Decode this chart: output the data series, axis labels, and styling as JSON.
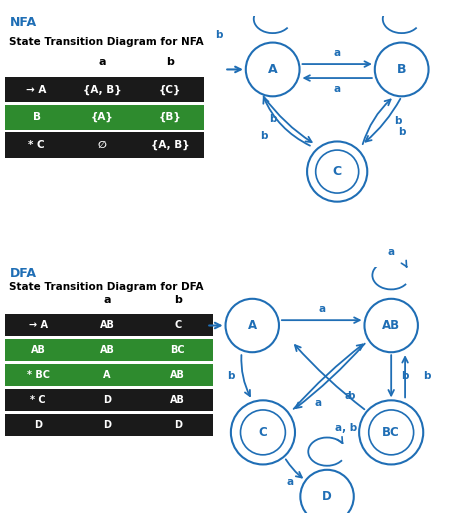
{
  "title_nfa": "NFA",
  "title_dfa": "DFA",
  "subtitle_nfa": "State Transition Diagram for NFA",
  "subtitle_dfa": "State Transition Diagram for DFA",
  "blue_color": "#1F6EB5",
  "green_color": "#2E8B2E",
  "dark_color": "#1a1a1a",
  "white_color": "#ffffff",
  "nfa_table": {
    "headers": [
      "",
      "a",
      "b"
    ],
    "rows": [
      [
        "→ A",
        "{A, B}",
        "{C}"
      ],
      [
        "B",
        "{A}",
        "{B}"
      ],
      [
        "* C",
        "∅",
        "{A, B}"
      ]
    ],
    "row_colors": [
      "#1a1a1a",
      "#2E8B2E",
      "#1a1a1a"
    ]
  },
  "dfa_table": {
    "headers": [
      "",
      "a",
      "b"
    ],
    "rows": [
      [
        "→ A",
        "AB",
        "C"
      ],
      [
        "AB",
        "AB",
        "BC"
      ],
      [
        "* BC",
        "A",
        "AB"
      ],
      [
        "* C",
        "D",
        "AB"
      ],
      [
        "D",
        "D",
        "D"
      ]
    ],
    "row_colors": [
      "#1a1a1a",
      "#2E8B2E",
      "#2E8B2E",
      "#1a1a1a",
      "#1a1a1a"
    ]
  }
}
